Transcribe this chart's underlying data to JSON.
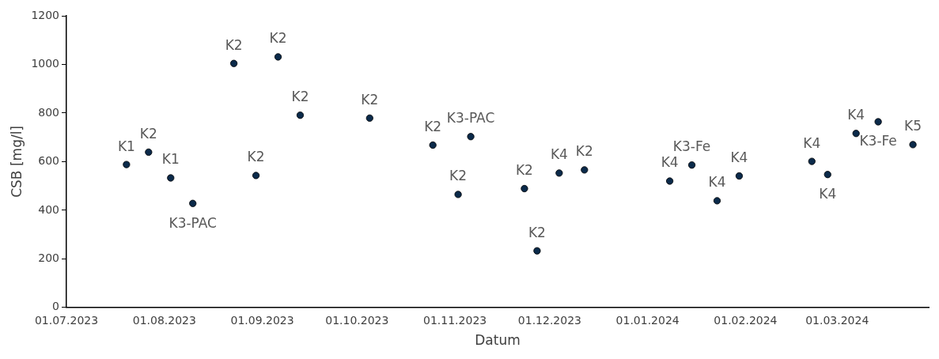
{
  "chart_data": {
    "type": "scatter",
    "xlabel": "Datum",
    "ylabel": "CSB [mg/l]",
    "xlim": [
      "2023-07-01",
      "2024-03-30"
    ],
    "xticks": [
      {
        "value": "2023-07-01",
        "label": "01.07.2023"
      },
      {
        "value": "2023-08-01",
        "label": "01.08.2023"
      },
      {
        "value": "2023-09-01",
        "label": "01.09.2023"
      },
      {
        "value": "2023-10-01",
        "label": "01.10.2023"
      },
      {
        "value": "2023-11-01",
        "label": "01.11.2023"
      },
      {
        "value": "2023-12-01",
        "label": "01.12.2023"
      },
      {
        "value": "2024-01-01",
        "label": "01.01.2024"
      },
      {
        "value": "2024-02-01",
        "label": "01.02.2024"
      },
      {
        "value": "2024-03-01",
        "label": "01.03.2024"
      }
    ],
    "ylim": [
      0,
      1200
    ],
    "yticks": [
      0,
      200,
      400,
      600,
      800,
      1000,
      1200
    ],
    "grid": false,
    "legend": false,
    "marker": "circle",
    "series": [
      {
        "color": "#0b2a4a",
        "x": [
          "2023-07-20",
          "2023-07-27",
          "2023-08-03",
          "2023-08-10",
          "2023-08-23",
          "2023-08-30",
          "2023-09-06",
          "2023-09-13",
          "2023-10-05",
          "2023-10-25",
          "2023-11-02",
          "2023-11-06",
          "2023-11-23",
          "2023-11-27",
          "2023-12-04",
          "2023-12-12",
          "2024-01-08",
          "2024-01-15",
          "2024-01-23",
          "2024-01-30",
          "2024-02-22",
          "2024-02-27",
          "2024-03-07",
          "2024-03-14",
          "2024-03-25"
        ],
        "values": [
          588,
          639,
          533,
          428,
          1004,
          543,
          1031,
          791,
          779,
          668,
          465,
          703,
          489,
          233,
          553,
          566,
          520,
          586,
          439,
          541,
          601,
          547,
          716,
          764,
          670
        ]
      }
    ],
    "annotations": [
      {
        "text": "K1",
        "x": "2023-07-20",
        "y": 588
      },
      {
        "text": "K2",
        "x": "2023-07-27",
        "y": 639
      },
      {
        "text": "K1",
        "x": "2023-08-03",
        "y": 533
      },
      {
        "text": "K3-PAC",
        "x": "2023-08-10",
        "y": 428
      },
      {
        "text": "K2",
        "x": "2023-08-23",
        "y": 1004
      },
      {
        "text": "K2",
        "x": "2023-08-30",
        "y": 543
      },
      {
        "text": "K2",
        "x": "2023-09-06",
        "y": 1031
      },
      {
        "text": "K2",
        "x": "2023-09-13",
        "y": 791
      },
      {
        "text": "K2",
        "x": "2023-10-05",
        "y": 779
      },
      {
        "text": "K2",
        "x": "2023-10-25",
        "y": 668
      },
      {
        "text": "K2",
        "x": "2023-11-02",
        "y": 465
      },
      {
        "text": "K3-PAC",
        "x": "2023-11-06",
        "y": 703
      },
      {
        "text": "K2",
        "x": "2023-11-23",
        "y": 489
      },
      {
        "text": "K2",
        "x": "2023-11-27",
        "y": 233
      },
      {
        "text": "K4",
        "x": "2023-12-04",
        "y": 553
      },
      {
        "text": "K2",
        "x": "2023-12-12",
        "y": 566
      },
      {
        "text": "K4",
        "x": "2024-01-08",
        "y": 520
      },
      {
        "text": "K3-Fe",
        "x": "2024-01-15",
        "y": 586
      },
      {
        "text": "K4",
        "x": "2024-01-23",
        "y": 439
      },
      {
        "text": "K4",
        "x": "2024-01-30",
        "y": 541
      },
      {
        "text": "K4",
        "x": "2024-02-22",
        "y": 601
      },
      {
        "text": "K4",
        "x": "2024-02-27",
        "y": 547
      },
      {
        "text": "K4",
        "x": "2024-03-07",
        "y": 716
      },
      {
        "text": "K3-Fe",
        "x": "2024-03-14",
        "y": 764
      },
      {
        "text": "K5",
        "x": "2024-03-25",
        "y": 670
      }
    ]
  }
}
